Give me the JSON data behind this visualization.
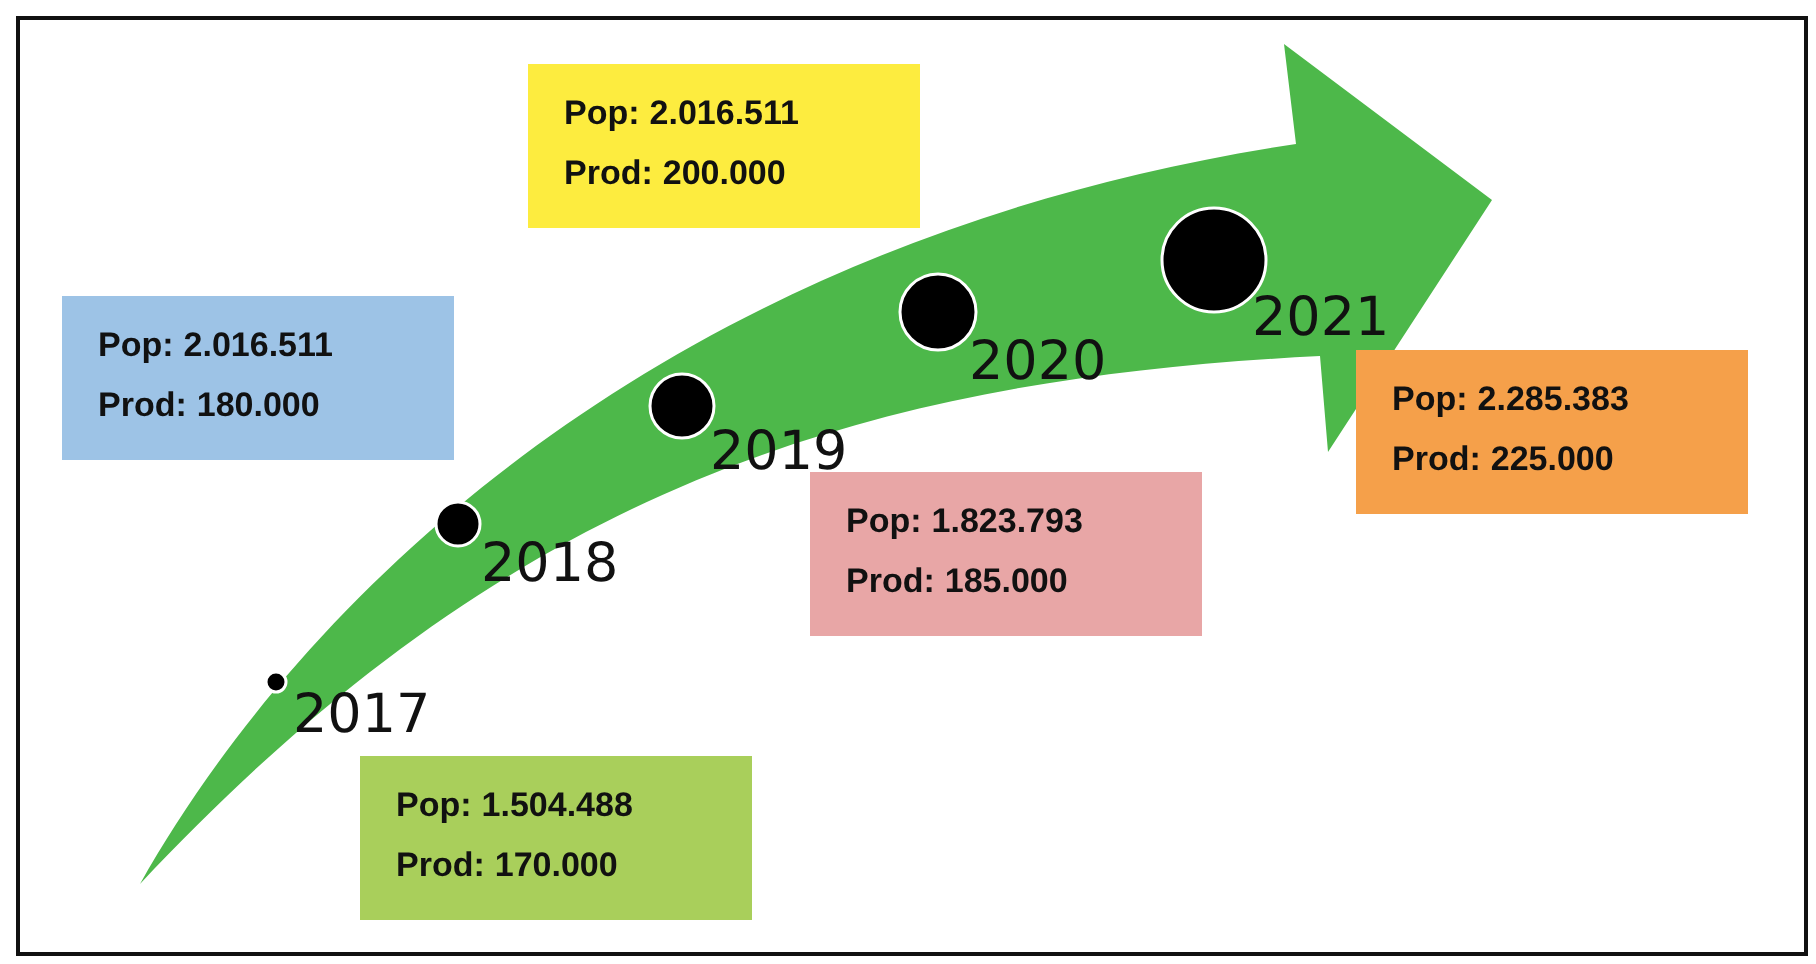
{
  "chart_data": {
    "type": "other",
    "categories": [
      "2017",
      "2018",
      "2019",
      "2020",
      "2021"
    ],
    "series": [
      {
        "name": "Pop:",
        "colors": [
          "#a9cf5b",
          "#9dc3e6",
          "#e8a6a6",
          "#fdec3f",
          "#f5a04a"
        ],
        "values": [
          1504488,
          2016511,
          1823793,
          2016511,
          2285383
        ],
        "value_labels": [
          "1.504.488",
          "2.016.511",
          "1.823.793",
          "2.016.511",
          "2.285.383"
        ]
      },
      {
        "name": "Prod:",
        "colors": [
          "#a9cf5b",
          "#9dc3e6",
          "#e8a6a6",
          "#fdec3f",
          "#f5a04a"
        ],
        "values": [
          170000,
          180000,
          185000,
          200000,
          225000
        ],
        "value_labels": [
          "170.000",
          "180.000",
          "185.000",
          "200.000",
          "225.000"
        ]
      }
    ]
  }
}
